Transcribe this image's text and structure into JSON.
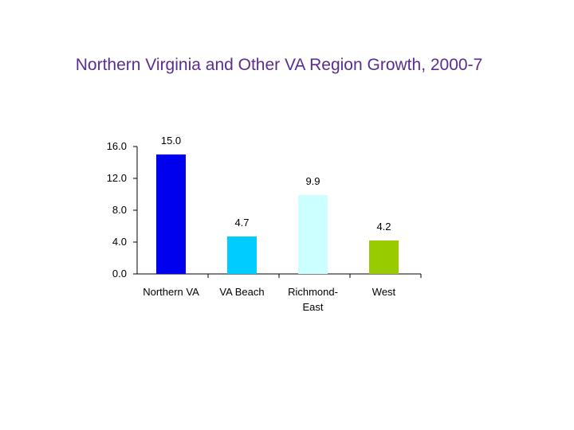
{
  "chart_data": {
    "type": "bar",
    "title": "Northern Virginia and Other VA Region Growth, 2000-7",
    "xlabel": "",
    "ylabel": "",
    "ylim": [
      0,
      16
    ],
    "yticks": [
      "0.0",
      "4.0",
      "8.0",
      "12.0",
      "16.0"
    ],
    "grid": false,
    "legend": "none",
    "categories": [
      [
        "Northern VA"
      ],
      [
        "VA Beach"
      ],
      [
        "Richmond-",
        "East"
      ],
      [
        "West"
      ]
    ],
    "values": [
      15.0,
      4.7,
      9.9,
      4.2
    ],
    "data_labels": [
      "15.0",
      "4.7",
      "9.9",
      "4.2"
    ],
    "colors": [
      "#0000ee",
      "#00ccff",
      "#ccffff",
      "#99cc00"
    ],
    "axis_color": "#000000",
    "title_color": "#5a2d91"
  }
}
